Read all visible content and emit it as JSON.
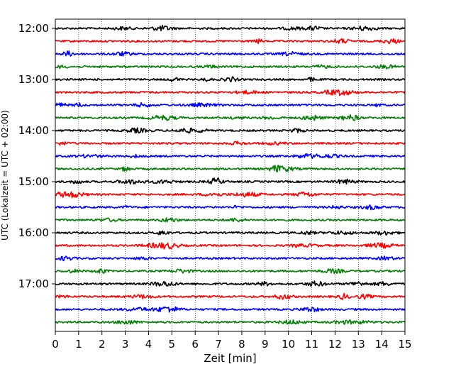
{
  "chart_data": {
    "type": "line",
    "title": "",
    "xlabel": "Zeit  [min]",
    "ylabel": "UTC (Lokalzeit = UTC + 02:00)",
    "xlim": [
      0,
      15
    ],
    "x_ticks": [
      0,
      1,
      2,
      3,
      4,
      5,
      6,
      7,
      8,
      9,
      10,
      11,
      12,
      13,
      14,
      15
    ],
    "x_tick_labels": [
      "0",
      "1",
      "2",
      "3",
      "4",
      "5",
      "6",
      "7",
      "8",
      "9",
      "10",
      "11",
      "12",
      "13",
      "14",
      "15"
    ],
    "y_tick_labels": [
      "12:00",
      "13:00",
      "14:00",
      "15:00",
      "16:00",
      "17:00"
    ],
    "grid": "vertical dotted",
    "trace_colors": [
      "#000000",
      "#ff0000",
      "#0000ff",
      "#008000"
    ],
    "traces": [
      {
        "start": "12:00",
        "color": "#000000"
      },
      {
        "start": "12:15",
        "color": "#ff0000"
      },
      {
        "start": "12:30",
        "color": "#0000ff"
      },
      {
        "start": "12:45",
        "color": "#008000"
      },
      {
        "start": "13:00",
        "color": "#000000"
      },
      {
        "start": "13:15",
        "color": "#ff0000"
      },
      {
        "start": "13:30",
        "color": "#0000ff"
      },
      {
        "start": "13:45",
        "color": "#008000"
      },
      {
        "start": "14:00",
        "color": "#000000"
      },
      {
        "start": "14:15",
        "color": "#ff0000"
      },
      {
        "start": "14:30",
        "color": "#0000ff"
      },
      {
        "start": "14:45",
        "color": "#008000"
      },
      {
        "start": "15:00",
        "color": "#000000"
      },
      {
        "start": "15:15",
        "color": "#ff0000"
      },
      {
        "start": "15:30",
        "color": "#0000ff"
      },
      {
        "start": "15:45",
        "color": "#008000"
      },
      {
        "start": "16:00",
        "color": "#000000"
      },
      {
        "start": "16:15",
        "color": "#ff0000"
      },
      {
        "start": "16:30",
        "color": "#0000ff"
      },
      {
        "start": "16:45",
        "color": "#008000"
      },
      {
        "start": "17:00",
        "color": "#000000"
      },
      {
        "start": "17:15",
        "color": "#ff0000"
      },
      {
        "start": "17:30",
        "color": "#0000ff"
      },
      {
        "start": "17:45",
        "color": "#008000"
      }
    ]
  }
}
